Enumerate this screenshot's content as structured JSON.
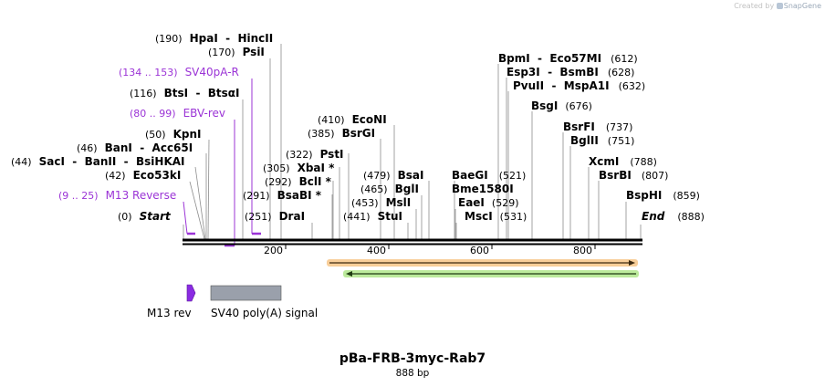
{
  "credit": {
    "prefix": "Created by",
    "brand": "SnapGene"
  },
  "map": {
    "title": "pBa-FRB-3myc-Rab7",
    "length_label": "888 bp",
    "seq_length": 888,
    "ruler_ticks": [
      "200",
      "400",
      "600",
      "800"
    ]
  },
  "enzymes": [
    {
      "name": "Start",
      "pos": "(0)",
      "side": "left",
      "special": true
    },
    {
      "name": "Eco53kI",
      "pos": "(42)",
      "side": "left"
    },
    {
      "name": "SacI  -  BanII  -  BsiHKAI",
      "pos": "(44)",
      "side": "left"
    },
    {
      "name": "BanI  -  Acc65I",
      "pos": "(46)",
      "side": "left"
    },
    {
      "name": "KpnI",
      "pos": "(50)",
      "side": "left"
    },
    {
      "name": "BtsI  -  BtsαI",
      "pos": "(116)",
      "side": "left"
    },
    {
      "name": "PsiI",
      "pos": "(170)",
      "side": "left"
    },
    {
      "name": "HpaI  -  HincII",
      "pos": "(190)",
      "side": "left"
    },
    {
      "name": "DraI",
      "pos": "(251)",
      "side": "left"
    },
    {
      "name": "BsaBI *",
      "pos": "(291)",
      "side": "left"
    },
    {
      "name": "BclI *",
      "pos": "(292)",
      "side": "left"
    },
    {
      "name": "XbaI *",
      "pos": "(305)",
      "side": "left"
    },
    {
      "name": "PstI",
      "pos": "(322)",
      "side": "left"
    },
    {
      "name": "BsrGI",
      "pos": "(385)",
      "side": "left"
    },
    {
      "name": "EcoNI",
      "pos": "(410)",
      "side": "left"
    },
    {
      "name": "StuI",
      "pos": "(441)",
      "side": "left"
    },
    {
      "name": "MslI",
      "pos": "(453)",
      "side": "left"
    },
    {
      "name": "BglI",
      "pos": "(465)",
      "side": "left"
    },
    {
      "name": "BsaI",
      "pos": "(479)",
      "side": "left"
    },
    {
      "name": "MscI",
      "pos": "(531)",
      "side": "right"
    },
    {
      "name": "EaeI",
      "pos": "(529)",
      "side": "right"
    },
    {
      "name": "Bme1580I",
      "pos": "",
      "side": "right"
    },
    {
      "name": "BaeGI",
      "pos": "(521)",
      "side": "right"
    },
    {
      "name": "BpmI  -  Eco57MI",
      "pos": "(612)",
      "side": "right"
    },
    {
      "name": "Esp3I  -  BsmBI",
      "pos": "(628)",
      "side": "right"
    },
    {
      "name": "PvuII  -  MspA1I",
      "pos": "(632)",
      "side": "right"
    },
    {
      "name": "BsgI",
      "pos": "(676)",
      "side": "right"
    },
    {
      "name": "BsrFI",
      "pos": "(737)",
      "side": "right"
    },
    {
      "name": "BglII",
      "pos": "(751)",
      "side": "right"
    },
    {
      "name": "XcmI",
      "pos": "(788)",
      "side": "right"
    },
    {
      "name": "BsrBI",
      "pos": "(807)",
      "side": "right"
    },
    {
      "name": "BspHI",
      "pos": "(859)",
      "side": "right"
    },
    {
      "name": "End",
      "pos": "(888)",
      "side": "right",
      "special": true
    }
  ],
  "primers": [
    {
      "name": "M13 Reverse",
      "range": "(9 .. 25)"
    },
    {
      "name": "EBV-rev",
      "range": "(80 .. 99)"
    },
    {
      "name": "SV40pA-R",
      "range": "(134 .. 153)"
    }
  ],
  "features": [
    {
      "name": "M13 rev",
      "color": "#8a2be2"
    },
    {
      "name": "SV40 poly(A) signal",
      "color": "#9aa0ab"
    }
  ],
  "colors": {
    "primer": "#9b34d6",
    "orf_orange": "#f3a545",
    "orf_green": "#8fdc5a",
    "backbone": "#000000"
  }
}
